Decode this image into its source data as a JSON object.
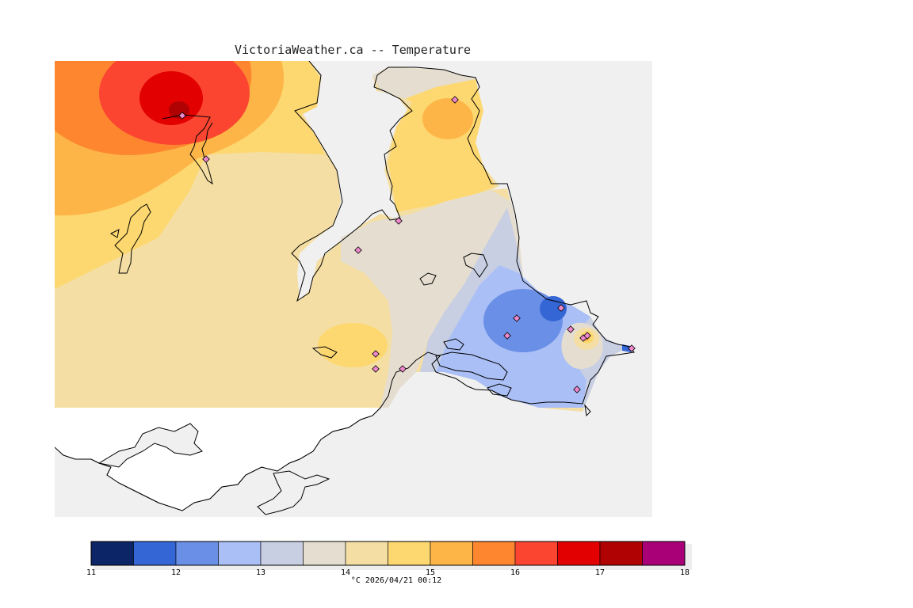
{
  "title": "VictoriaWeather.ca -- Temperature",
  "variable": "Temperature",
  "units": "°C",
  "timestamp": "2026/04/21 00:12",
  "caption": "°C  2026/04/21 00:12",
  "legend": {
    "min": 11,
    "max": 18,
    "step": 0.5,
    "tick_labels": [
      "11",
      "12",
      "13",
      "14",
      "15",
      "16",
      "17",
      "18"
    ],
    "colors": [
      "#0b2566",
      "#3466d6",
      "#6a8fe6",
      "#aabff6",
      "#c8cfe3",
      "#e5ded0",
      "#f4dea3",
      "#fdd870",
      "#fdb548",
      "#fd862f",
      "#fb4531",
      "#e20000",
      "#b00202",
      "#aa0077"
    ]
  },
  "colors": {
    "ocean": "#f0f0f0",
    "land_no_data": "#ffffff",
    "coastline": "#000000",
    "station_marker": "#ee88cc"
  },
  "stations_count": 16
}
